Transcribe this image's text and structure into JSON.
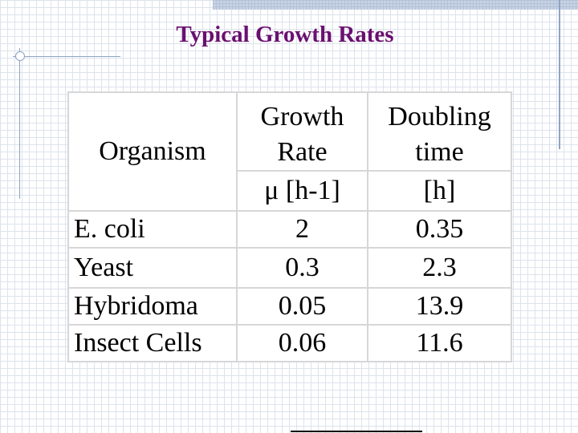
{
  "slide": {
    "title": "Typical Growth Rates"
  },
  "table": {
    "header": {
      "organism": "Organism",
      "growth_line1": "Growth",
      "growth_line2": "Rate",
      "growth_unit": "μ [h-1]",
      "doubling_line1": "Doubling",
      "doubling_line2": "time",
      "doubling_unit": "[h]"
    },
    "rows": [
      {
        "organism": "E. coli",
        "growth_rate": "2",
        "doubling_time": "0.35"
      },
      {
        "organism": "Yeast",
        "growth_rate": "0.3",
        "doubling_time": "2.3"
      },
      {
        "organism": "Hybridoma",
        "growth_rate": "0.05",
        "doubling_time": "13.9"
      },
      {
        "organism": "Insect Cells",
        "growth_rate": "0.06",
        "doubling_time": "11.6"
      }
    ]
  }
}
